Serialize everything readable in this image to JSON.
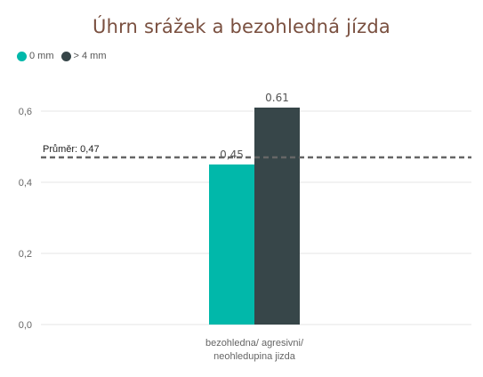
{
  "chart_data": {
    "type": "bar",
    "title": "Úhrn srážek a bezohledná jízda",
    "categories": [
      "bezohledna/ agresivni/ neohledupina jizda"
    ],
    "category_label_lines": [
      "bezohledna/ agresivni/",
      "neohledupina jizda"
    ],
    "series": [
      {
        "name": "0 mm",
        "values": [
          0.45
        ],
        "value_labels": [
          "0,45"
        ],
        "color": "#01b8aa"
      },
      {
        "name": "> 4 mm",
        "values": [
          0.61
        ],
        "value_labels": [
          "0.61"
        ],
        "color": "#374649"
      }
    ],
    "ylim": [
      0,
      0.68
    ],
    "yticks": [
      0,
      0.2,
      0.4,
      0.6
    ],
    "ytick_labels": [
      "0,0",
      "0,2",
      "0,4",
      "0,6"
    ],
    "reference_line": {
      "label": "Průměr: 0,47",
      "value": 0.47,
      "style": "dashed",
      "color": "#666666"
    },
    "legend_position": "top-left",
    "grid": true
  }
}
